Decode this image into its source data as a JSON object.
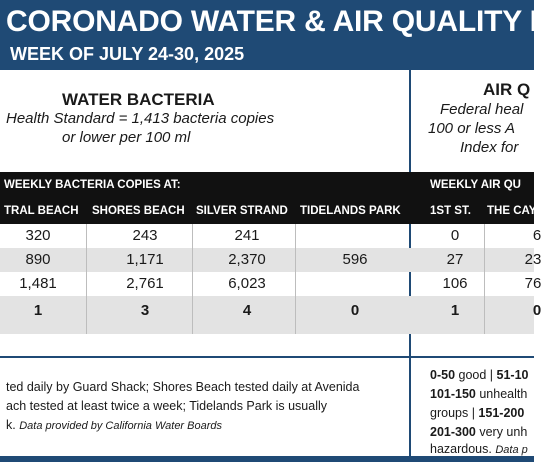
{
  "header": {
    "title": "CORONADO WATER & AIR QUALITY R",
    "subtitle": "WEEK OF JULY 24-30, 2025"
  },
  "water": {
    "heading": "WATER BACTERIA",
    "standard_line1": "Health Standard  = 1,413 bacteria copies",
    "standard_line2": "or lower per 100 ml",
    "bar_label": "WEEKLY BACTERIA COPIES AT:",
    "columns": [
      "TRAL BEACH",
      "SHORES BEACH",
      "SILVER STRAND",
      "TIDELANDS PARK"
    ],
    "rows": [
      [
        "320",
        "243",
        "241",
        ""
      ],
      [
        "890",
        "1,171",
        "2,370",
        "596"
      ],
      [
        "1,481",
        "2,761",
        "6,023",
        ""
      ],
      [
        "1",
        "3",
        "4",
        "0"
      ]
    ],
    "footnote_line1": "ted daily by Guard Shack; Shores Beach tested daily at Avenida",
    "footnote_line2": "ach tested at least twice a week; Tidelands Park is usually",
    "footnote_line3_text": "k.",
    "footnote_line3_source": "Data provided by California Water Boards"
  },
  "air": {
    "heading": "AIR Q",
    "standard_line1": "Federal heal",
    "standard_line2": "100 or less A",
    "standard_line3": "Index for",
    "bar_label": "WEEKLY AIR QU",
    "columns": [
      "1ST ST.",
      "THE CAY"
    ],
    "rows": [
      [
        "0",
        "6"
      ],
      [
        "27",
        "23"
      ],
      [
        "106",
        "76"
      ],
      [
        "1",
        "0"
      ]
    ],
    "legend_line1_range": "0-50",
    "legend_line1_text": " good | ",
    "legend_line1_range2": "51-10",
    "legend_line2_range": "101-150",
    "legend_line2_text": " unhealth",
    "legend_line3_text": "groups | ",
    "legend_line3_range": "151-200",
    "legend_line4_range": "201-300",
    "legend_line4_text": " very unh",
    "legend_line5_text": "hazardous.",
    "legend_line5_source": "Data p"
  },
  "colors": {
    "brand": "#1f4a75",
    "bar": "#111111",
    "shade": "#e3e3e3"
  }
}
